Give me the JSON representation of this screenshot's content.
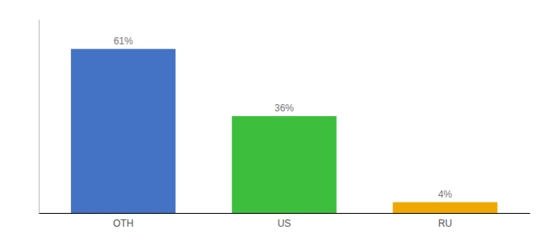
{
  "chart_data": {
    "type": "bar",
    "categories": [
      "OTH",
      "US",
      "RU"
    ],
    "values": [
      61,
      36,
      4
    ],
    "value_labels": [
      "61%",
      "36%",
      "4%"
    ],
    "colors": [
      "#4472c4",
      "#3dbf3d",
      "#f0a800"
    ],
    "ylim": [
      0,
      72
    ],
    "data_labels": true,
    "tick_labels": "x"
  }
}
